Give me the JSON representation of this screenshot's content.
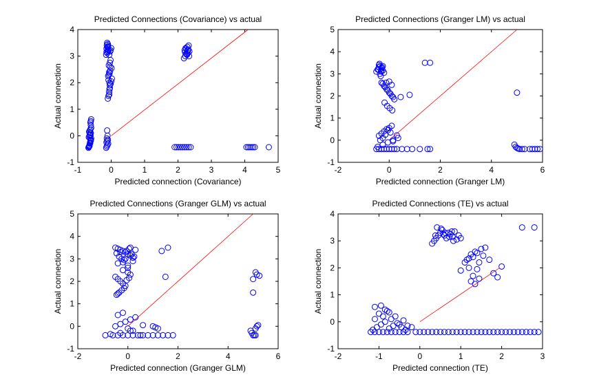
{
  "figure": {
    "point_color": "#0000ff",
    "ref_color": "#ff0000",
    "marker": "circle-open"
  },
  "chart_data": [
    {
      "type": "scatter",
      "title": "Predicted Connections (Covariance) vs actual",
      "xlabel": "Predicted connection (Covariance)",
      "ylabel": "Actual connection",
      "xlim": [
        -1,
        5
      ],
      "ylim": [
        -1,
        4
      ],
      "xticks": [
        -1,
        0,
        1,
        2,
        3,
        4,
        5
      ],
      "yticks": [
        -1,
        0,
        1,
        2,
        3,
        4
      ],
      "reference_line": [
        [
          0,
          0
        ],
        [
          4.1,
          4.0
        ]
      ],
      "series": [
        {
          "x": [
            -0.68,
            -0.67,
            -0.66,
            -0.65,
            -0.64,
            -0.63,
            -0.62,
            -0.61,
            -0.6,
            -0.67,
            -0.65,
            -0.63,
            -0.61,
            -0.66,
            -0.64,
            -0.62,
            -0.6,
            -0.65,
            -0.63,
            -0.61,
            -0.64,
            -0.62,
            -0.63,
            -0.61,
            -0.62,
            -0.6,
            -0.61,
            -0.15,
            -0.12,
            -0.1,
            -0.08,
            -0.14,
            -0.11,
            -0.09,
            -0.13,
            -0.1,
            -0.12,
            -0.14,
            -0.09,
            -0.11,
            -0.06,
            -0.03,
            0.0,
            -0.02,
            -0.15,
            -0.13,
            -0.11,
            -0.09,
            -0.14,
            -0.12,
            -0.1,
            -0.13,
            -0.11,
            -0.12,
            -0.1,
            -0.08,
            -0.06,
            -0.04,
            -0.02,
            0.0,
            0.02,
            -0.09,
            -0.05,
            -0.03,
            0.01,
            -0.07,
            -0.04,
            -0.02,
            -0.06,
            -0.08,
            -0.05,
            -0.03,
            -0.07,
            -0.04,
            -0.06,
            -0.05,
            2.18,
            2.22,
            2.26,
            2.3,
            2.34,
            2.2,
            2.24,
            2.28,
            2.32,
            2.21,
            2.27,
            2.31,
            2.25,
            2.29,
            2.23,
            2.33,
            1.9,
            1.96,
            2.02,
            2.08,
            2.14,
            2.2,
            2.26,
            2.32,
            2.38,
            4.05,
            4.1,
            4.15,
            4.2,
            4.25,
            4.3,
            4.72
          ],
          "y": [
            -0.45,
            -0.42,
            -0.4,
            -0.35,
            -0.3,
            -0.25,
            -0.2,
            -0.15,
            -0.1,
            -0.05,
            0.0,
            0.05,
            0.1,
            0.15,
            0.2,
            0.25,
            0.3,
            -0.38,
            -0.28,
            -0.18,
            -0.08,
            0.02,
            0.12,
            0.4,
            0.5,
            0.62,
            0.55,
            3.05,
            3.12,
            3.18,
            3.22,
            3.28,
            3.33,
            3.38,
            3.42,
            3.45,
            3.5,
            3.15,
            3.25,
            3.35,
            3.05,
            3.18,
            3.3,
            3.22,
            -0.45,
            -0.4,
            -0.35,
            -0.3,
            -0.25,
            -0.2,
            -0.15,
            -0.1,
            0.0,
            0.2,
            1.4,
            1.5,
            1.65,
            1.8,
            1.95,
            2.05,
            2.15,
            2.25,
            2.35,
            2.45,
            2.55,
            2.65,
            2.75,
            2.85,
            1.55,
            2.1,
            1.75,
            2.6,
            2.3,
            1.9,
            2.4,
            2.0,
            2.92,
            3.0,
            3.08,
            3.12,
            3.18,
            3.22,
            3.28,
            3.35,
            3.4,
            3.15,
            3.05,
            3.25,
            3.1,
            3.2,
            3.3,
            3.0,
            -0.43,
            -0.43,
            -0.43,
            -0.43,
            -0.43,
            -0.43,
            -0.43,
            -0.43,
            -0.43,
            -0.43,
            -0.43,
            -0.43,
            -0.43,
            -0.43,
            -0.43,
            -0.43
          ]
        }
      ]
    },
    {
      "type": "scatter",
      "title": "Predicted Connections (Granger LM) vs actual",
      "xlabel": "Predicted connection (Granger LM)",
      "ylabel": "Actual connection",
      "xlim": [
        -2,
        6
      ],
      "ylim": [
        -1,
        5
      ],
      "xticks": [
        -2,
        0,
        2,
        4,
        6
      ],
      "yticks": [
        -1,
        0,
        1,
        2,
        3,
        4,
        5
      ],
      "reference_line": [
        [
          0,
          0
        ],
        [
          5.0,
          5.0
        ]
      ],
      "series": [
        {
          "x": [
            -0.5,
            -0.45,
            -0.4,
            -0.35,
            -0.3,
            -0.25,
            -0.2,
            -0.4,
            -0.33,
            -0.28,
            -0.42,
            -0.36,
            -0.3,
            -0.25,
            -0.38,
            -0.32,
            -0.3,
            -0.2,
            -0.1,
            0.0,
            0.1,
            0.2,
            -0.25,
            -0.15,
            -0.05,
            0.05,
            0.15,
            -0.18,
            -0.08,
            0.02,
            0.12,
            0.45,
            0.8,
            -0.12,
            0.0,
            0.1,
            -0.5,
            -0.4,
            -0.3,
            -0.2,
            -0.1,
            0.0,
            0.1,
            0.2,
            0.3,
            0.5,
            0.7,
            0.9,
            1.2,
            1.5,
            1.6,
            -0.45,
            -0.25,
            -0.05,
            0.15,
            0.35,
            -0.4,
            -0.3,
            -0.2,
            -0.1,
            0.0,
            0.1,
            -0.35,
            -0.15,
            0.05,
            -0.25,
            -0.05,
            0.15,
            0.3,
            1.4,
            1.6,
            5.0,
            4.9,
            4.95,
            5.0,
            5.05,
            5.1,
            5.2,
            5.3,
            5.5,
            5.6,
            5.7,
            5.8,
            5.9
          ],
          "y": [
            3.1,
            3.2,
            3.3,
            3.35,
            3.25,
            3.15,
            3.05,
            3.4,
            2.9,
            3.3,
            3.2,
            3.0,
            3.15,
            3.35,
            3.45,
            3.1,
            2.6,
            2.45,
            2.3,
            2.15,
            2.0,
            1.85,
            2.55,
            2.4,
            2.25,
            2.1,
            1.95,
            1.7,
            1.55,
            1.45,
            1.35,
            1.95,
            2.05,
            2.6,
            2.65,
            2.5,
            -0.4,
            -0.4,
            -0.4,
            -0.4,
            -0.4,
            -0.4,
            -0.4,
            -0.4,
            -0.4,
            -0.4,
            -0.4,
            -0.4,
            -0.4,
            -0.4,
            -0.4,
            -0.3,
            -0.2,
            -0.1,
            0.0,
            0.1,
            0.2,
            0.3,
            0.4,
            0.5,
            0.55,
            0.65,
            0.0,
            0.25,
            0.35,
            0.1,
            0.45,
            -0.05,
            0.22,
            3.5,
            3.5,
            2.15,
            -0.2,
            -0.3,
            -0.35,
            -0.38,
            -0.4,
            -0.4,
            -0.4,
            -0.4,
            -0.4,
            -0.4,
            -0.4,
            -0.4
          ]
        }
      ]
    },
    {
      "type": "scatter",
      "title": "Predicted Connections (Granger GLM) vs actual",
      "xlabel": "Predicted connection (Granger GLM)",
      "ylabel": "Actual connection",
      "xlim": [
        -2,
        6
      ],
      "ylim": [
        -1,
        5
      ],
      "xticks": [
        -2,
        0,
        2,
        4,
        6
      ],
      "yticks": [
        -1,
        0,
        1,
        2,
        3,
        4,
        5
      ],
      "reference_line": [
        [
          0,
          0
        ],
        [
          5.0,
          5.0
        ]
      ],
      "series": [
        {
          "x": [
            -0.5,
            -0.4,
            -0.3,
            -0.2,
            -0.1,
            0.0,
            0.1,
            0.2,
            0.3,
            -0.45,
            -0.35,
            -0.25,
            -0.15,
            -0.05,
            0.05,
            0.15,
            0.25,
            -0.4,
            -0.2,
            0.0,
            0.2,
            -0.3,
            -0.1,
            0.1,
            -0.5,
            -0.4,
            -0.3,
            -0.2,
            -0.1,
            0.0,
            0.1,
            -0.45,
            -0.35,
            -0.25,
            -0.15,
            -0.05,
            0.05,
            -0.4,
            -0.2,
            0.0,
            -0.9,
            -0.6,
            -0.4,
            -0.2,
            0.0,
            0.2,
            0.4,
            0.6,
            0.8,
            1.0,
            1.2,
            1.4,
            1.6,
            1.8,
            -0.7,
            -0.3,
            0.1,
            0.5,
            -0.5,
            -0.3,
            -0.1,
            0.1,
            0.3,
            -0.4,
            -0.2,
            0.0,
            0.2,
            0.6,
            1.0,
            1.1,
            1.2,
            1.35,
            1.6,
            1.5,
            4.9,
            4.95,
            5.0,
            5.05,
            5.1,
            5.15,
            5.2,
            5.0,
            5.1,
            5.0,
            5.15,
            5.25,
            5.1
          ],
          "y": [
            3.5,
            3.45,
            3.4,
            3.35,
            3.3,
            3.2,
            3.15,
            3.05,
            3.4,
            3.25,
            3.1,
            3.0,
            2.95,
            3.35,
            3.45,
            3.2,
            3.1,
            2.8,
            2.85,
            2.7,
            2.9,
            3.3,
            3.0,
            3.5,
            2.2,
            2.1,
            2.0,
            1.9,
            1.8,
            2.4,
            2.3,
            1.4,
            1.5,
            1.6,
            1.7,
            2.05,
            2.15,
            1.45,
            2.5,
            2.6,
            -0.4,
            -0.4,
            -0.4,
            -0.4,
            -0.4,
            -0.4,
            -0.4,
            -0.4,
            -0.4,
            -0.4,
            -0.4,
            -0.4,
            -0.4,
            -0.4,
            -0.35,
            -0.3,
            -0.2,
            -0.4,
            0.0,
            0.1,
            0.2,
            0.3,
            0.4,
            0.5,
            0.6,
            -0.1,
            -0.2,
            0.05,
            0.0,
            -0.05,
            -0.1,
            3.35,
            3.5,
            2.2,
            -0.2,
            -0.3,
            -0.4,
            -0.4,
            -0.4,
            0.0,
            0.05,
            2.1,
            2.4,
            1.5,
            2.3,
            2.25,
            -0.1
          ]
        }
      ]
    },
    {
      "type": "scatter",
      "title": "Predicted Connections (TE) vs actual",
      "xlabel": "Predicted connection (TE)",
      "ylabel": "Actual connection",
      "xlim": [
        -2,
        3
      ],
      "ylim": [
        -1,
        4
      ],
      "xticks": [
        -2,
        -1,
        0,
        1,
        2,
        3
      ],
      "yticks": [
        -1,
        0,
        1,
        2,
        3,
        4
      ],
      "reference_line": [
        [
          0,
          0
        ],
        [
          1.95,
          2.0
        ]
      ],
      "series": [
        {
          "x": [
            -1.2,
            -1.1,
            -1.0,
            -0.9,
            -0.8,
            -0.7,
            -0.6,
            -0.5,
            -0.4,
            -0.3,
            -1.15,
            -1.05,
            -0.95,
            -0.85,
            -0.75,
            -0.65,
            -0.55,
            -0.45,
            -0.35,
            -1.1,
            -0.9,
            -0.7,
            -0.5,
            -0.3,
            -1.0,
            -0.8,
            -0.6,
            -0.4,
            -0.2,
            -1.1,
            -0.95,
            -0.85,
            -0.75,
            -0.1,
            0.0,
            0.2,
            0.4,
            0.6,
            0.8,
            1.0,
            1.2,
            1.4,
            1.6,
            1.8,
            2.0,
            2.2,
            2.4,
            2.6,
            2.8,
            2.9,
            0.1,
            0.3,
            0.5,
            0.7,
            0.9,
            1.1,
            1.3,
            1.5,
            1.7,
            1.9,
            2.1,
            2.3,
            2.5,
            2.7,
            0.3,
            0.35,
            0.4,
            0.45,
            0.5,
            0.55,
            0.6,
            0.65,
            0.7,
            0.75,
            0.8,
            0.85,
            0.9,
            0.95,
            1.0,
            0.42,
            0.52,
            0.62,
            0.72,
            0.82,
            0.38,
            0.58,
            0.78,
            1.0,
            1.1,
            1.15,
            1.2,
            1.25,
            1.3,
            1.35,
            1.4,
            1.45,
            1.5,
            1.55,
            1.6,
            1.7,
            1.8,
            1.9,
            2.0,
            1.25,
            1.35,
            1.45,
            1.3,
            1.4,
            1.2,
            2.5,
            2.8
          ],
          "y": [
            -0.38,
            -0.38,
            -0.38,
            -0.38,
            -0.38,
            -0.38,
            -0.38,
            -0.38,
            -0.38,
            -0.38,
            -0.3,
            -0.2,
            -0.1,
            0.0,
            -0.25,
            -0.15,
            -0.05,
            -0.2,
            -0.3,
            0.1,
            0.2,
            0.1,
            -0.1,
            -0.15,
            0.3,
            0.4,
            0.2,
            0.05,
            -0.2,
            0.55,
            0.6,
            0.45,
            0.35,
            -0.38,
            -0.38,
            -0.38,
            -0.38,
            -0.38,
            -0.38,
            -0.38,
            -0.38,
            -0.38,
            -0.38,
            -0.38,
            -0.38,
            -0.38,
            -0.38,
            -0.38,
            -0.38,
            -0.38,
            -0.38,
            -0.38,
            -0.38,
            -0.38,
            -0.38,
            -0.38,
            -0.38,
            -0.38,
            -0.38,
            -0.38,
            -0.38,
            -0.38,
            -0.38,
            -0.38,
            2.9,
            3.0,
            3.1,
            3.2,
            3.3,
            3.4,
            3.2,
            3.1,
            3.3,
            3.25,
            3.15,
            3.35,
            3.05,
            3.2,
            3.1,
            3.5,
            3.45,
            3.3,
            3.15,
            3.0,
            3.2,
            3.25,
            3.35,
            1.9,
            2.2,
            2.3,
            2.0,
            2.5,
            2.4,
            2.6,
            2.55,
            2.2,
            2.7,
            2.45,
            2.75,
            2.3,
            1.8,
            1.65,
            2.05,
            1.5,
            1.4,
            1.6,
            1.7,
            1.95,
            2.35,
            3.5,
            3.5
          ]
        }
      ]
    }
  ]
}
